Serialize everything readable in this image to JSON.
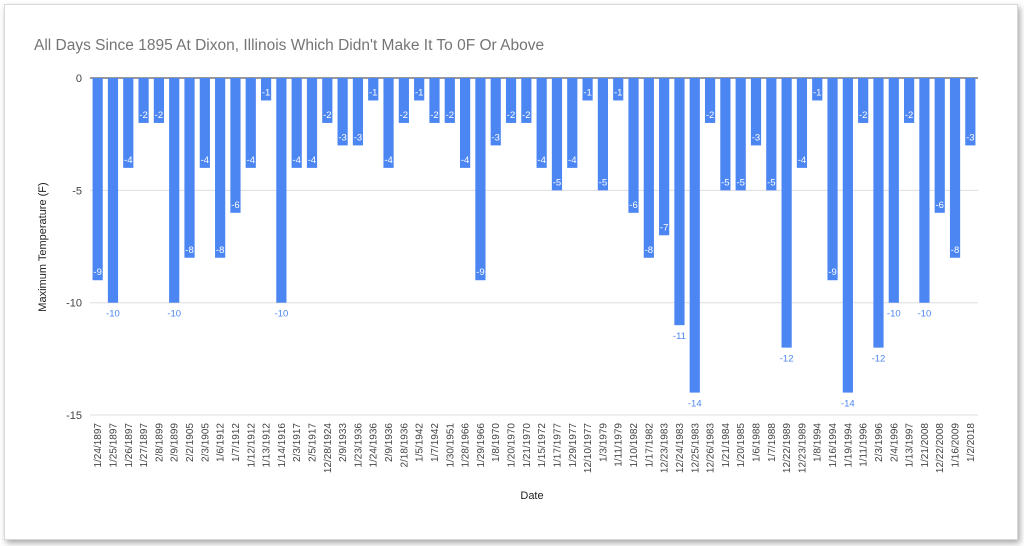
{
  "chart_data": {
    "type": "bar",
    "title": "All Days Since 1895 At Dixon, Illinois Which Didn't Make It To 0F Or Above",
    "xlabel": "Date",
    "ylabel": "Maximum Temperature (F)",
    "ylim": [
      -15,
      0
    ],
    "yticks": [
      0,
      -5,
      -10,
      -15
    ],
    "grid": true,
    "legend": "none",
    "bar_color": "#4c86f2",
    "label_color_in": "#ffffff",
    "label_color_out": "#4c86f2",
    "categories": [
      "1/24/1897",
      "1/25/1897",
      "1/26/1897",
      "1/27/1897",
      "2/8/1899",
      "2/9/1899",
      "2/2/1905",
      "2/3/1905",
      "1/6/1912",
      "1/7/1912",
      "1/12/1912",
      "1/13/1912",
      "1/14/1916",
      "2/3/1917",
      "2/5/1917",
      "12/28/1924",
      "2/9/1933",
      "1/23/1936",
      "1/24/1936",
      "2/9/1936",
      "2/18/1936",
      "1/5/1942",
      "1/7/1942",
      "1/30/1951",
      "1/28/1966",
      "1/29/1966",
      "1/8/1970",
      "1/20/1970",
      "1/21/1970",
      "1/15/1972",
      "1/17/1977",
      "1/29/1977",
      "12/10/1977",
      "1/3/1979",
      "1/11/1979",
      "1/10/1982",
      "1/17/1982",
      "12/23/1983",
      "12/24/1983",
      "12/25/1983",
      "12/26/1983",
      "1/21/1984",
      "1/20/1985",
      "1/6/1988",
      "1/7/1988",
      "12/22/1989",
      "12/23/1989",
      "1/8/1994",
      "1/16/1994",
      "1/19/1994",
      "1/11/1996",
      "2/3/1996",
      "2/4/1996",
      "1/13/1997",
      "1/21/2008",
      "12/22/2008",
      "1/16/2009",
      "1/2/2018"
    ],
    "values": [
      -9,
      -10,
      -4,
      -2,
      -2,
      -10,
      -8,
      -4,
      -8,
      -6,
      -4,
      -1,
      -10,
      -4,
      -4,
      -2,
      -3,
      -3,
      -1,
      -4,
      -2,
      -1,
      -2,
      -2,
      -4,
      -9,
      -3,
      -2,
      -2,
      -4,
      -5,
      -4,
      -1,
      -5,
      -1,
      -6,
      -8,
      -7,
      -11,
      -14,
      -2,
      -5,
      -5,
      -3,
      -5,
      -12,
      -4,
      -1,
      -9,
      -14,
      -2,
      -12,
      -10,
      -2,
      -10,
      -6,
      -8,
      -3
    ]
  }
}
